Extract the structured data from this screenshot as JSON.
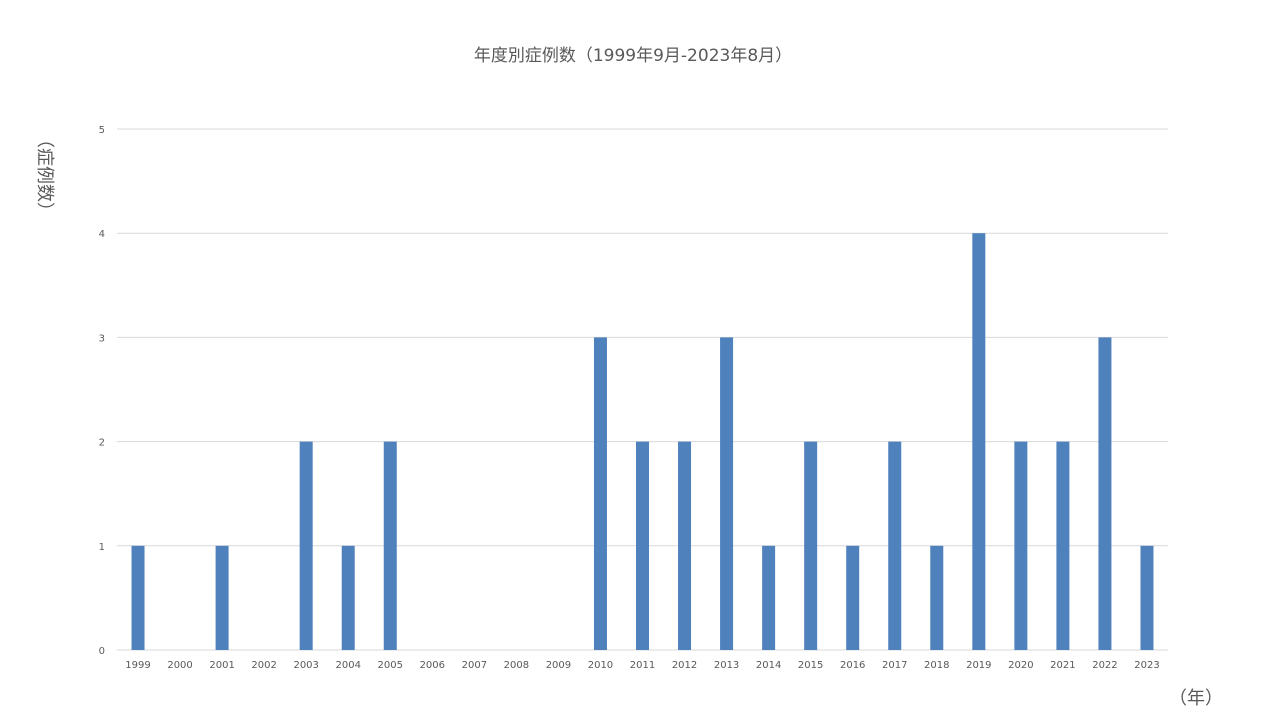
{
  "chart_data": {
    "type": "bar",
    "title": "年度別症例数（1999年9月-2023年8月）",
    "ylabel": "（症例数）",
    "xlabel": "（年）",
    "categories": [
      "1999",
      "2000",
      "2001",
      "2002",
      "2003",
      "2004",
      "2005",
      "2006",
      "2007",
      "2008",
      "2009",
      "2010",
      "2011",
      "2012",
      "2013",
      "2014",
      "2015",
      "2016",
      "2017",
      "2018",
      "2019",
      "2020",
      "2021",
      "2022",
      "2023"
    ],
    "series": [
      {
        "values": [
          1,
          0,
          1,
          0,
          2,
          1,
          2,
          0,
          0,
          0,
          0,
          3,
          2,
          2,
          3,
          1,
          2,
          1,
          2,
          1,
          4,
          2,
          2,
          3,
          1
        ]
      }
    ],
    "ylim": [
      0,
      5
    ],
    "yticks": [
      "0",
      "1",
      "2",
      "3",
      "4",
      "5"
    ],
    "grid": true,
    "legend": "none",
    "bar_color": "#4f81bd"
  }
}
